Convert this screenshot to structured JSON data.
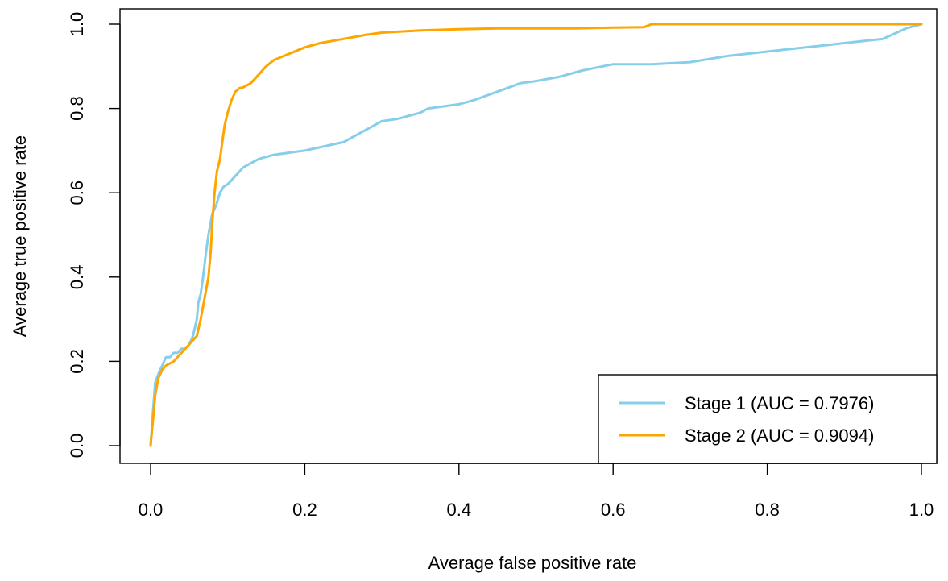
{
  "chart_data": {
    "type": "line",
    "title": "",
    "xlabel": "Average false positive rate",
    "ylabel": "Average true positive rate",
    "xlim": [
      0.0,
      1.0
    ],
    "ylim": [
      0.0,
      1.0
    ],
    "x_ticks": [
      "0.0",
      "0.2",
      "0.4",
      "0.6",
      "0.8",
      "1.0"
    ],
    "y_ticks": [
      "0.0",
      "0.2",
      "0.4",
      "0.6",
      "0.8",
      "1.0"
    ],
    "grid": false,
    "legend_position": "bottom-right",
    "series": [
      {
        "name": "Stage 1 (AUC = 0.7976)",
        "color": "#87CEEB",
        "x": [
          0,
          0.003,
          0.006,
          0.01,
          0.015,
          0.02,
          0.025,
          0.03,
          0.035,
          0.04,
          0.045,
          0.05,
          0.055,
          0.06,
          0.062,
          0.065,
          0.068,
          0.07,
          0.072,
          0.075,
          0.078,
          0.08,
          0.085,
          0.09,
          0.095,
          0.1,
          0.105,
          0.11,
          0.115,
          0.12,
          0.13,
          0.14,
          0.15,
          0.16,
          0.2,
          0.25,
          0.28,
          0.3,
          0.32,
          0.35,
          0.36,
          0.38,
          0.4,
          0.42,
          0.45,
          0.48,
          0.5,
          0.53,
          0.56,
          0.6,
          0.65,
          0.7,
          0.75,
          0.8,
          0.85,
          0.9,
          0.95,
          0.98,
          1.0
        ],
        "y": [
          0.0,
          0.08,
          0.15,
          0.17,
          0.19,
          0.21,
          0.21,
          0.22,
          0.22,
          0.23,
          0.23,
          0.24,
          0.26,
          0.3,
          0.34,
          0.36,
          0.4,
          0.43,
          0.46,
          0.5,
          0.53,
          0.55,
          0.57,
          0.6,
          0.615,
          0.62,
          0.63,
          0.64,
          0.65,
          0.66,
          0.67,
          0.68,
          0.685,
          0.69,
          0.7,
          0.72,
          0.75,
          0.77,
          0.775,
          0.79,
          0.8,
          0.805,
          0.81,
          0.82,
          0.84,
          0.86,
          0.865,
          0.875,
          0.89,
          0.905,
          0.905,
          0.91,
          0.925,
          0.935,
          0.945,
          0.955,
          0.965,
          0.99,
          1.0
        ]
      },
      {
        "name": "Stage 2 (AUC = 0.9094)",
        "color": "#FFA500",
        "x": [
          0,
          0.003,
          0.006,
          0.01,
          0.015,
          0.02,
          0.03,
          0.04,
          0.05,
          0.06,
          0.065,
          0.07,
          0.075,
          0.078,
          0.08,
          0.083,
          0.086,
          0.09,
          0.093,
          0.096,
          0.1,
          0.105,
          0.11,
          0.115,
          0.12,
          0.13,
          0.14,
          0.15,
          0.16,
          0.18,
          0.2,
          0.22,
          0.25,
          0.28,
          0.3,
          0.35,
          0.4,
          0.45,
          0.5,
          0.55,
          0.6,
          0.64,
          0.65,
          0.7,
          0.8,
          0.9,
          1.0
        ],
        "y": [
          0.0,
          0.06,
          0.12,
          0.16,
          0.18,
          0.19,
          0.2,
          0.22,
          0.24,
          0.26,
          0.3,
          0.35,
          0.4,
          0.46,
          0.53,
          0.6,
          0.65,
          0.68,
          0.72,
          0.76,
          0.79,
          0.82,
          0.84,
          0.848,
          0.85,
          0.86,
          0.88,
          0.9,
          0.915,
          0.93,
          0.945,
          0.955,
          0.965,
          0.975,
          0.98,
          0.985,
          0.988,
          0.99,
          0.99,
          0.99,
          0.992,
          0.993,
          1.0,
          1.0,
          1.0,
          1.0,
          1.0
        ]
      }
    ]
  }
}
